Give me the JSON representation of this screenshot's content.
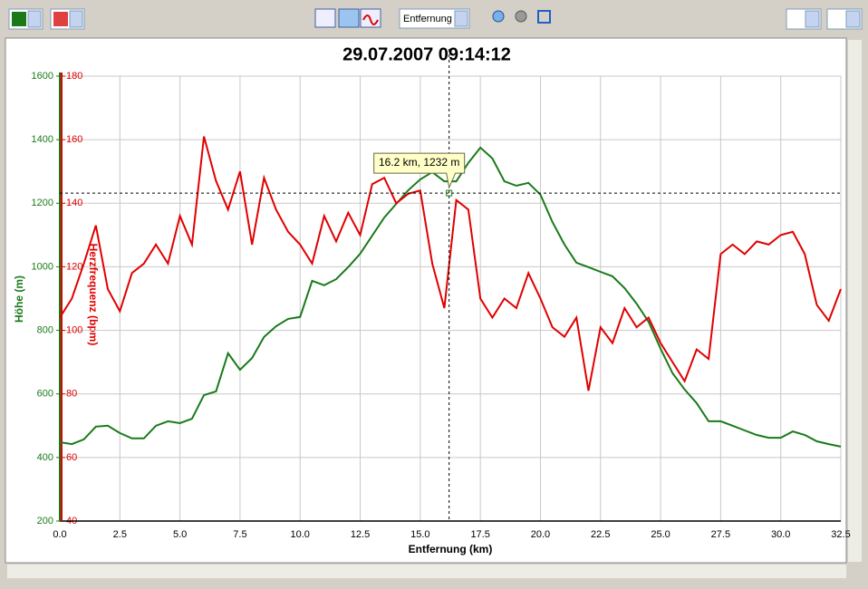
{
  "toolbar": {
    "x_axis_select": "Entfernung"
  },
  "chart_data": {
    "type": "line",
    "title": "29.07.2007 09:14:12",
    "x_label": "Entfernung (km)",
    "y_label": "Höhe (m)",
    "y2_label": "Herzfrequenz (bpm)",
    "x": [
      0,
      0.5,
      1,
      1.5,
      2,
      2.5,
      3,
      3.5,
      4,
      4.5,
      5,
      5.5,
      6,
      6.5,
      7,
      7.5,
      8,
      8.5,
      9,
      9.5,
      10,
      10.5,
      11,
      11.5,
      12,
      12.5,
      13,
      13.5,
      14,
      14.5,
      15,
      15.5,
      16,
      16.5,
      17,
      17.5,
      18,
      18.5,
      19,
      19.5,
      20,
      20.5,
      21,
      21.5,
      22,
      22.5,
      23,
      23.5,
      24,
      24.5,
      25,
      25.5,
      26,
      26.5,
      27,
      27.5,
      28,
      28.5,
      29,
      29.5,
      30,
      30.5,
      31,
      31.5,
      32,
      32.5
    ],
    "series": [
      {
        "name": "Höhe (m)",
        "color": "#1a7a1a",
        "axis": "y",
        "values": [
          448,
          442,
          457,
          497,
          500,
          477,
          460,
          460,
          500,
          514,
          508,
          522,
          596,
          608,
          728,
          676,
          713,
          779,
          813,
          836,
          842,
          956,
          942,
          961,
          999,
          1041,
          1098,
          1155,
          1198,
          1241,
          1275,
          1298,
          1269,
          1269,
          1327,
          1375,
          1341,
          1269,
          1255,
          1264,
          1227,
          1141,
          1070,
          1013,
          999,
          984,
          970,
          933,
          884,
          827,
          742,
          665,
          614,
          571,
          514,
          514,
          500,
          485,
          471,
          462,
          462,
          482,
          471,
          451,
          442,
          434
        ]
      },
      {
        "name": "Herzfrequenz (bpm)",
        "color": "#e00000",
        "axis": "y2",
        "values": [
          104,
          110,
          121,
          133,
          113,
          106,
          118,
          121,
          127,
          121,
          136,
          127,
          161,
          147,
          138,
          150,
          127,
          148,
          138,
          131,
          127,
          121,
          136,
          128,
          137,
          130,
          146,
          148,
          140,
          143,
          144,
          121,
          107,
          141,
          138,
          110,
          104,
          110,
          107,
          118,
          110,
          101,
          98,
          104,
          81,
          101,
          96,
          107,
          101,
          104,
          96,
          90,
          84,
          94,
          91,
          124,
          127,
          124,
          128,
          127,
          130,
          131,
          124,
          108,
          103,
          113
        ]
      }
    ],
    "xlim": [
      0,
      32.5
    ],
    "xticks": [
      {
        "value": 0,
        "label": "0.0"
      },
      2.5,
      {
        "value": 5,
        "label": "5.0"
      },
      7.5,
      {
        "value": 10,
        "label": "10.0"
      },
      12.5,
      {
        "value": 15,
        "label": "15.0"
      },
      17.5,
      {
        "value": 20,
        "label": "20.0"
      },
      22.5,
      {
        "value": 25,
        "label": "25.0"
      },
      27.5,
      {
        "value": 30,
        "label": "30.0"
      },
      32.5
    ],
    "ylim": [
      200,
      1600
    ],
    "yticks": [
      200,
      400,
      600,
      800,
      1000,
      1200,
      1400,
      1600
    ],
    "y2lim": [
      40,
      180
    ],
    "y2ticks": [
      40,
      60,
      80,
      100,
      120,
      140,
      160,
      180
    ],
    "grid": true,
    "crosshair": {
      "x": 16.2,
      "y": 1232,
      "label": "16.2 km, 1232 m"
    }
  }
}
